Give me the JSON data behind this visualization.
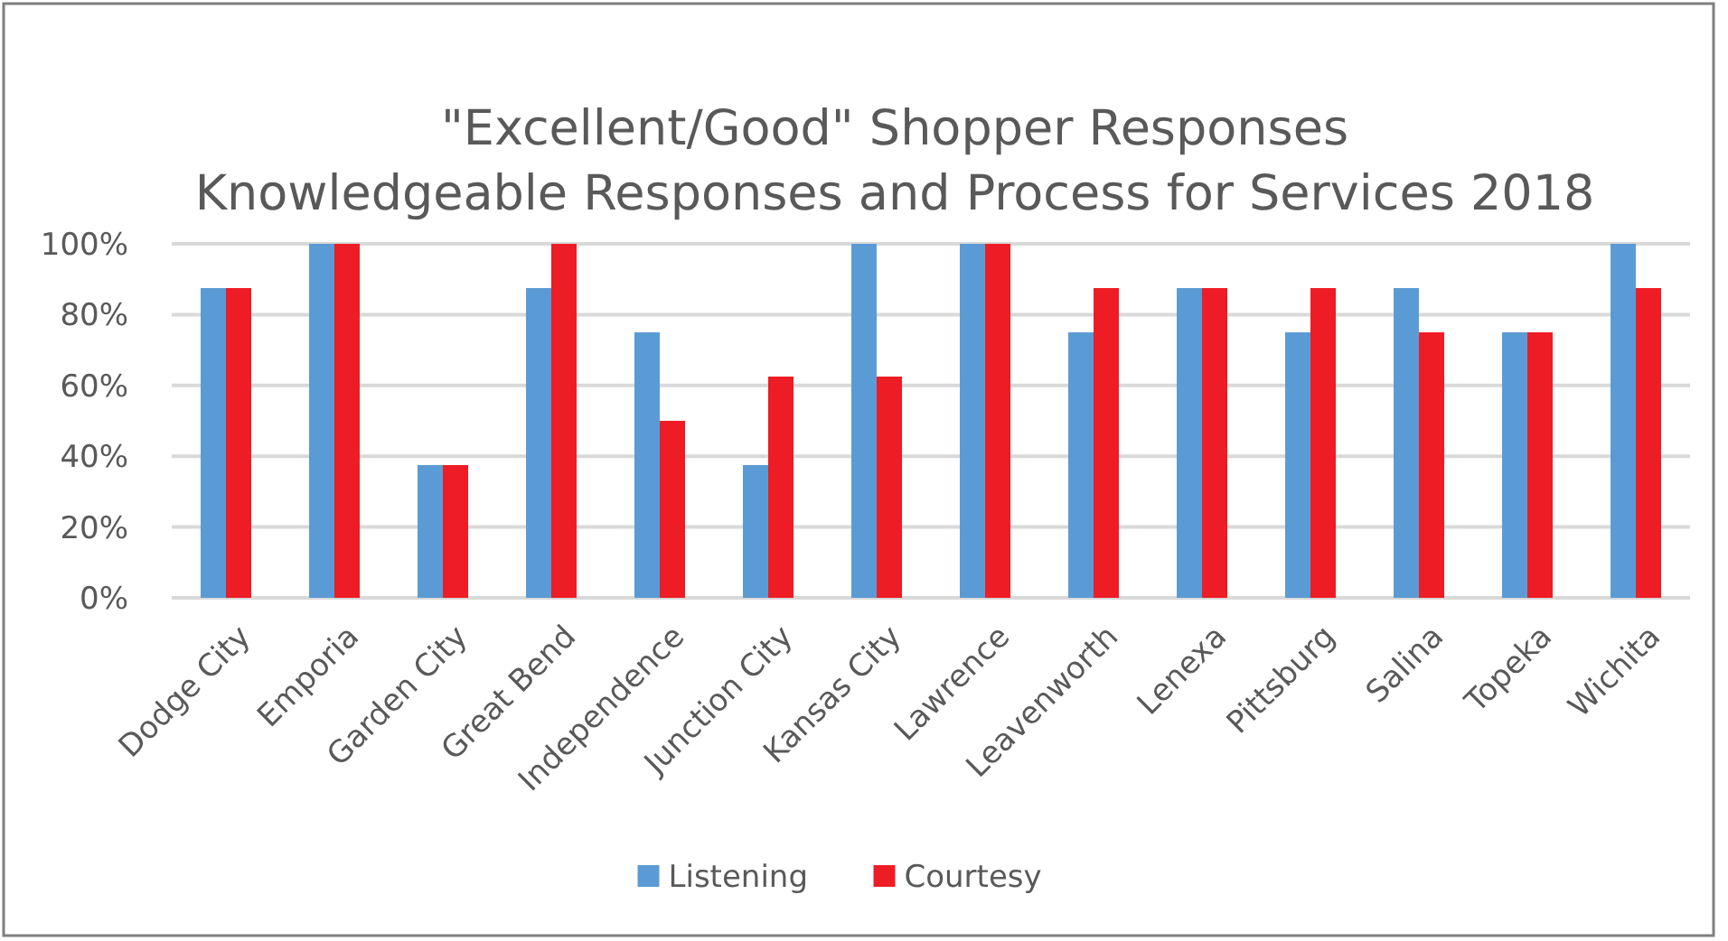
{
  "chart_data": {
    "type": "bar",
    "title": "\"Excellent/Good\" Shopper Responses\nKnowledgeable Responses and Process for Services 2018",
    "categories": [
      "Dodge City",
      "Emporia",
      "Garden City",
      "Great Bend",
      "Independence",
      "Junction City",
      "Kansas City",
      "Lawrence",
      "Leavenworth",
      "Lenexa",
      "Pittsburg",
      "Salina",
      "Topeka",
      "Wichita"
    ],
    "series": [
      {
        "name": "Listening",
        "color": "#5b9bd5",
        "values": [
          87.5,
          100,
          37.5,
          87.5,
          75,
          37.5,
          100,
          100,
          75,
          87.5,
          75,
          87.5,
          75,
          100
        ]
      },
      {
        "name": "Courtesy",
        "color": "#ee1c25",
        "values": [
          87.5,
          100,
          37.5,
          100,
          50,
          62.5,
          62.5,
          100,
          87.5,
          87.5,
          87.5,
          75,
          75,
          87.5
        ]
      }
    ],
    "ylim": [
      0,
      100
    ],
    "yticks": [
      {
        "value": 0,
        "label": "0%"
      },
      {
        "value": 20,
        "label": "20%"
      },
      {
        "value": 40,
        "label": "40%"
      },
      {
        "value": 60,
        "label": "60%"
      },
      {
        "value": 80,
        "label": "80%"
      },
      {
        "value": 100,
        "label": "100%"
      }
    ],
    "grid": "y",
    "legend": "bottom"
  }
}
